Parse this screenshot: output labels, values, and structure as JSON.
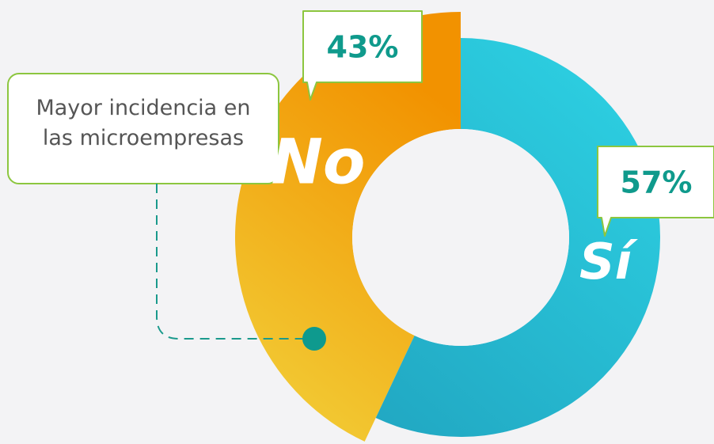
{
  "chart_data": {
    "type": "pie",
    "categories": [
      "No",
      "Sí"
    ],
    "values": [
      43,
      57
    ],
    "value_labels": [
      "43%",
      "57%"
    ],
    "colors": [
      "#f29200",
      "#21a7c2"
    ],
    "annotation": "Mayor incidencia en las microempresas"
  }
}
